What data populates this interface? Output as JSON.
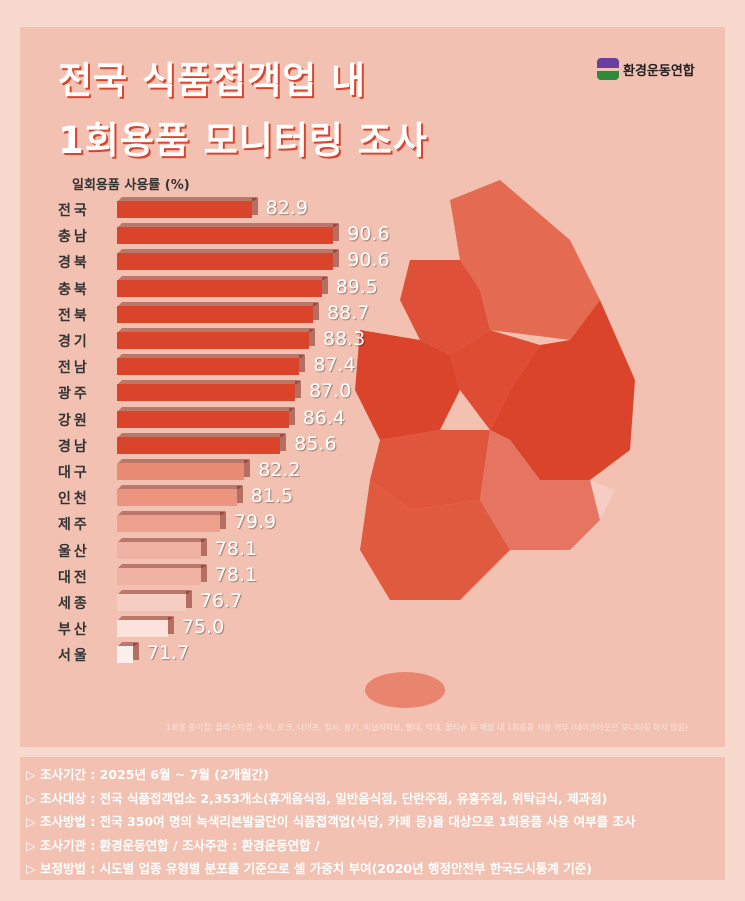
{
  "title": {
    "line1": "전국 식품접객업 내",
    "line2": "1회용품 모니터링 조사"
  },
  "logo": {
    "text": "환경운동연합"
  },
  "chart_data": {
    "type": "bar",
    "orientation": "horizontal",
    "ylabel": "일회용품 사용률 (%)",
    "categories": [
      "전국",
      "충남",
      "경북",
      "충북",
      "전북",
      "경기",
      "전남",
      "광주",
      "강원",
      "경남",
      "대구",
      "인천",
      "제주",
      "울산",
      "대전",
      "세종",
      "부산",
      "서울"
    ],
    "values": [
      82.9,
      90.6,
      90.6,
      89.5,
      88.7,
      88.3,
      87.4,
      87.0,
      86.4,
      85.6,
      82.2,
      81.5,
      79.9,
      78.1,
      78.1,
      76.7,
      75.0,
      71.7
    ],
    "labels": [
      "82.9",
      "90.6",
      "90.6",
      "89.5",
      "88.7",
      "88.3",
      "87.4",
      "87.0",
      "86.4",
      "85.6",
      "82.2",
      "81.5",
      "79.9",
      "78.1",
      "78.1",
      "76.7",
      "75.0",
      "71.7"
    ],
    "colors": [
      "#d9442b",
      "#d9442b",
      "#d9442b",
      "#d9442b",
      "#d9442b",
      "#d9442b",
      "#d9442b",
      "#d9442b",
      "#d9442b",
      "#d9442b",
      "#e98a74",
      "#eb9580",
      "#eda08c",
      "#f0b3a3",
      "#f0b3a3",
      "#f6cdc2",
      "#fbe3dc",
      "#fdf0ec"
    ]
  },
  "footnote": "1회용 종이컵, 플라스틱컵, 수저, 포크, 나이프, 접시, 용기, 비닐식탁보, 빨대, 먹대, 물티슈 등 매장 내 1회용품 사용 여부 (테이크아웃은 모니터링 하지 않음)",
  "info": [
    "▷ 조사기간 : 2025년 6월 ~ 7월 (2개월간)",
    "▷ 조사대상 : 전국 식품접객업소 2,353개소(휴게음식점, 일반음식점, 단란주점, 유흥주점, 위탁급식, 제과점)",
    "▷ 조사방법 : 전국 350여 명의 녹색리본발굴단이 식품접객업(식당, 카페 등)을 대상으로 1회용품 사용 여부를 조사",
    "▷ 조사기관 : 환경운동연합 / 조사주관 : 환경운동연합 /",
    "▷ 보정방법 : 시도별 업종 유형별 분포를 기준으로 셀 가중치 부여(2020년 행정안전부 한국도시통계 기준)"
  ]
}
